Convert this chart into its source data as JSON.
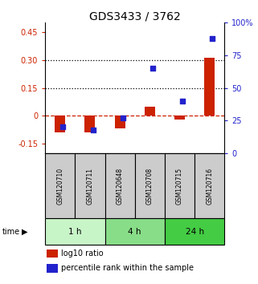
{
  "title": "GDS3433 / 3762",
  "samples": [
    "GSM120710",
    "GSM120711",
    "GSM120648",
    "GSM120708",
    "GSM120715",
    "GSM120716"
  ],
  "log10_ratio": [
    -0.09,
    -0.09,
    -0.065,
    0.05,
    -0.018,
    0.31
  ],
  "percentile_rank_pct": [
    20,
    18,
    27,
    65,
    40,
    88
  ],
  "time_groups": [
    {
      "label": "1 h",
      "samples": [
        0,
        1
      ],
      "color": "#c8f5c8"
    },
    {
      "label": "4 h",
      "samples": [
        2,
        3
      ],
      "color": "#88dd88"
    },
    {
      "label": "24 h",
      "samples": [
        4,
        5
      ],
      "color": "#44cc44"
    }
  ],
  "ylim_left": [
    -0.2,
    0.5
  ],
  "ylim_right": [
    0,
    100
  ],
  "yticks_left": [
    -0.15,
    0.0,
    0.15,
    0.3,
    0.45
  ],
  "yticks_right": [
    0,
    25,
    50,
    75,
    100
  ],
  "ytick_labels_left": [
    "-0.15",
    "0",
    "0.15",
    "0.30",
    "0.45"
  ],
  "ytick_labels_right": [
    "0",
    "25",
    "50",
    "75",
    "100%"
  ],
  "hlines": [
    0.15,
    0.3
  ],
  "red_color": "#cc2200",
  "blue_color": "#2222cc",
  "background_color": "#ffffff",
  "sample_box_color": "#cccccc",
  "zero_line_color": "#cc2200",
  "title_fontsize": 10,
  "tick_fontsize": 7,
  "legend_fontsize": 7
}
